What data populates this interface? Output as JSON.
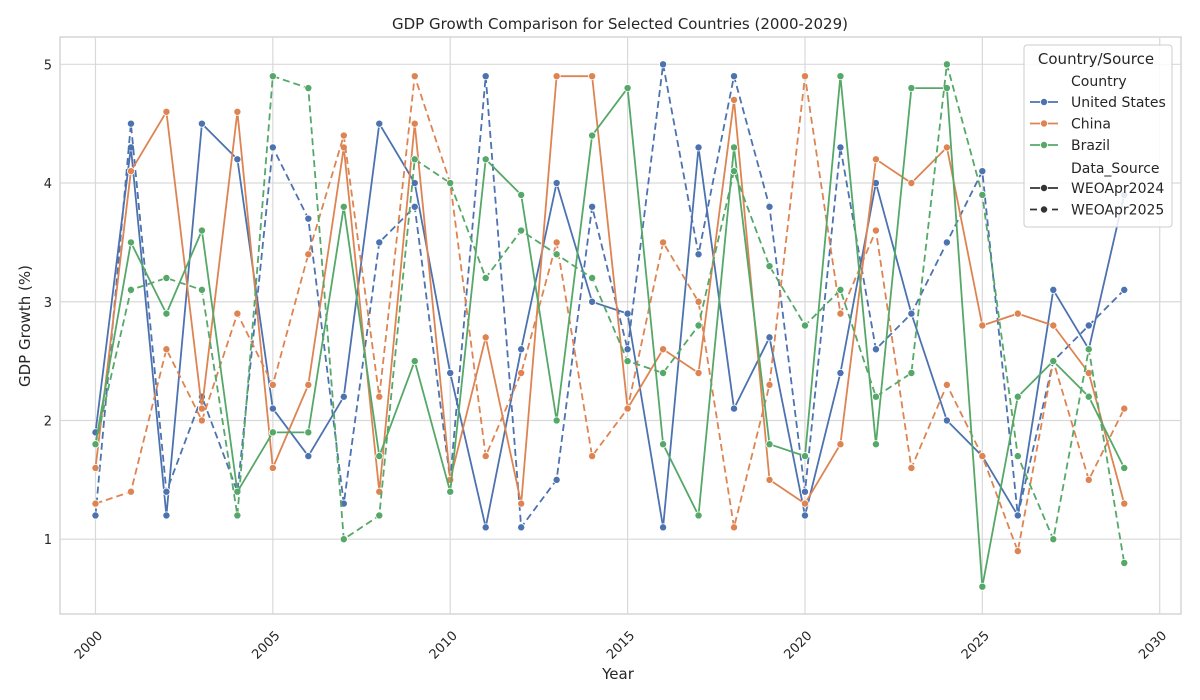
{
  "chart_data": {
    "type": "line",
    "title": "GDP Growth Comparison for Selected Countries (2000-2029)",
    "xlabel": "Year",
    "ylabel": "GDP Growth (%)",
    "xlim": [
      1999.0,
      2030.6
    ],
    "ylim": [
      0.37,
      5.23
    ],
    "xticks": [
      2000,
      2005,
      2010,
      2015,
      2020,
      2025,
      2030
    ],
    "yticks": [
      1,
      2,
      3,
      4,
      5
    ],
    "grid": true,
    "legend": {
      "placement": "top-right",
      "title": "Country/Source",
      "country_header": "Country",
      "source_header": "Data_Source",
      "source_labels": [
        "WEOApr2024",
        "WEOApr2025"
      ]
    },
    "series": [
      {
        "name": "United States",
        "source": "WEOApr2024",
        "color": "#4c72b0",
        "dashed": false,
        "x": [
          2000,
          2001,
          2002,
          2003,
          2004,
          2005,
          2006,
          2007,
          2008,
          2009,
          2010,
          2011,
          2012,
          2013,
          2014,
          2015,
          2016,
          2017,
          2018,
          2019,
          2020,
          2021,
          2022,
          2023,
          2024,
          2025,
          2026,
          2027,
          2028,
          2029
        ],
        "y": [
          1.9,
          4.3,
          1.2,
          4.5,
          4.2,
          2.1,
          1.7,
          2.2,
          4.5,
          4.0,
          2.4,
          1.1,
          2.6,
          4.0,
          3.0,
          2.9,
          1.1,
          4.3,
          2.1,
          2.7,
          1.2,
          2.4,
          4.0,
          2.9,
          2.0,
          1.7,
          1.2,
          3.1,
          2.6,
          3.9
        ]
      },
      {
        "name": "United States",
        "source": "WEOApr2025",
        "color": "#4c72b0",
        "dashed": true,
        "x": [
          2000,
          2001,
          2002,
          2003,
          2004,
          2005,
          2006,
          2007,
          2008,
          2009,
          2010,
          2011,
          2012,
          2013,
          2014,
          2015,
          2016,
          2017,
          2018,
          2019,
          2020,
          2021,
          2022,
          2023,
          2024,
          2025,
          2026,
          2027,
          2028,
          2029
        ],
        "y": [
          1.2,
          4.5,
          1.4,
          2.2,
          1.4,
          4.3,
          3.7,
          1.3,
          3.5,
          3.8,
          1.5,
          4.9,
          1.1,
          1.5,
          3.8,
          2.6,
          5.0,
          3.4,
          4.9,
          3.8,
          1.4,
          4.3,
          2.6,
          2.9,
          3.5,
          4.1,
          1.2,
          2.5,
          2.8,
          3.1
        ]
      },
      {
        "name": "China",
        "source": "WEOApr2024",
        "color": "#dd8452",
        "dashed": false,
        "x": [
          2000,
          2001,
          2002,
          2003,
          2004,
          2005,
          2006,
          2007,
          2008,
          2009,
          2010,
          2011,
          2012,
          2013,
          2014,
          2015,
          2016,
          2017,
          2018,
          2019,
          2020,
          2021,
          2022,
          2023,
          2024,
          2025,
          2026,
          2027,
          2028,
          2029
        ],
        "y": [
          1.6,
          4.1,
          4.6,
          2.1,
          4.6,
          1.6,
          2.3,
          4.3,
          1.4,
          4.5,
          1.5,
          2.7,
          1.3,
          4.9,
          4.9,
          2.1,
          2.6,
          2.4,
          4.7,
          1.5,
          1.3,
          1.8,
          4.2,
          4.0,
          4.3,
          2.8,
          2.9,
          2.8,
          2.4,
          1.3
        ]
      },
      {
        "name": "China",
        "source": "WEOApr2025",
        "color": "#dd8452",
        "dashed": true,
        "x": [
          2000,
          2001,
          2002,
          2003,
          2004,
          2005,
          2006,
          2007,
          2008,
          2009,
          2010,
          2011,
          2012,
          2013,
          2014,
          2015,
          2016,
          2017,
          2018,
          2019,
          2020,
          2021,
          2022,
          2023,
          2024,
          2025,
          2026,
          2027,
          2028,
          2029
        ],
        "y": [
          1.3,
          1.4,
          2.6,
          2.0,
          2.9,
          2.3,
          3.4,
          4.4,
          2.2,
          4.9,
          4.0,
          1.7,
          2.4,
          3.5,
          1.7,
          2.1,
          3.5,
          3.0,
          1.1,
          2.3,
          4.9,
          2.9,
          3.6,
          1.6,
          2.3,
          1.7,
          0.9,
          2.5,
          1.5,
          2.1
        ]
      },
      {
        "name": "Brazil",
        "source": "WEOApr2024",
        "color": "#55a868",
        "dashed": false,
        "x": [
          2000,
          2001,
          2002,
          2003,
          2004,
          2005,
          2006,
          2007,
          2008,
          2009,
          2010,
          2011,
          2012,
          2013,
          2014,
          2015,
          2016,
          2017,
          2018,
          2019,
          2020,
          2021,
          2022,
          2023,
          2024,
          2025,
          2026,
          2027,
          2028,
          2029
        ],
        "y": [
          1.8,
          3.5,
          2.9,
          3.6,
          1.4,
          1.9,
          1.9,
          3.8,
          1.7,
          2.5,
          1.4,
          4.2,
          3.9,
          2.0,
          4.4,
          4.8,
          1.8,
          1.2,
          4.3,
          1.8,
          1.7,
          4.9,
          1.8,
          4.8,
          4.8,
          0.6,
          2.2,
          2.5,
          2.2,
          1.6
        ]
      },
      {
        "name": "Brazil",
        "source": "WEOApr2025",
        "color": "#55a868",
        "dashed": true,
        "x": [
          2000,
          2001,
          2002,
          2003,
          2004,
          2005,
          2006,
          2007,
          2008,
          2009,
          2010,
          2011,
          2012,
          2013,
          2014,
          2015,
          2016,
          2017,
          2018,
          2019,
          2020,
          2021,
          2022,
          2023,
          2024,
          2025,
          2026,
          2027,
          2028,
          2029
        ],
        "y": [
          1.8,
          3.1,
          3.2,
          3.1,
          1.2,
          4.9,
          4.8,
          1.0,
          1.2,
          4.2,
          4.0,
          3.2,
          3.6,
          3.4,
          3.2,
          2.5,
          2.4,
          2.8,
          4.1,
          3.3,
          2.8,
          3.1,
          2.2,
          2.4,
          5.0,
          3.9,
          1.7,
          1.0,
          2.6,
          0.8
        ]
      }
    ]
  }
}
